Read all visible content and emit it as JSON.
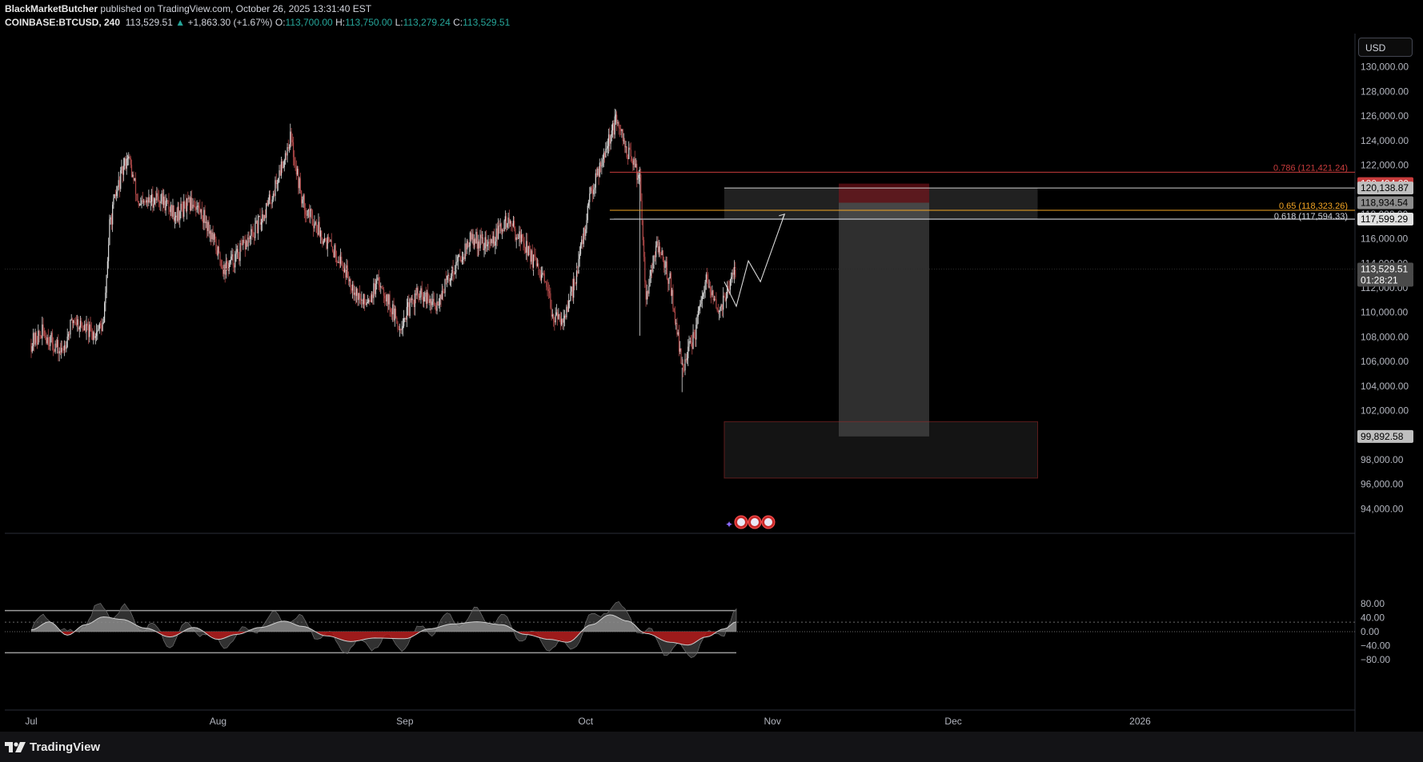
{
  "header": {
    "author": "BlackMarketButcher",
    "published_text": "published on TradingView.com, October 26, 2025 13:31:40 EST",
    "symbol": "COINBASE:BTCUSD, 240",
    "last": "113,529.51",
    "change_arrow": "▲",
    "change": "+1,863.30 (+1.67%)",
    "o_label": "O:",
    "o_value": "113,700.00",
    "h_label": "H:",
    "h_value": "113,750.00",
    "l_label": "L:",
    "l_value": "113,279.24",
    "c_label": "C:",
    "c_value": "113,529.51"
  },
  "currency_button": "USD",
  "footer": {
    "logo_text": "TradingView"
  },
  "colors": {
    "background": "#000000",
    "up": "#26a69a",
    "down_candle": "#b04848",
    "up_candle": "#d9d9d9",
    "fib_red": "#c83c3c",
    "fib_orange": "#f5a623",
    "oscillator_pos": "#8a8a8a",
    "oscillator_neg": "#b01818"
  },
  "chart_data": [
    {
      "type": "candlestick",
      "title": "COINBASE:BTCUSD, 240",
      "y_axis_ticks": [
        "130,000.00",
        "128,000.00",
        "126,000.00",
        "124,000.00",
        "122,000.00",
        "120,000.00",
        "118,000.00",
        "116,000.00",
        "114,000.00",
        "112,000.00",
        "110,000.00",
        "108,000.00",
        "106,000.00",
        "104,000.00",
        "102,000.00",
        "100,000.00",
        "98,000.00",
        "96,000.00",
        "94,000.00"
      ],
      "x_axis_ticks": [
        "Jul",
        "Aug",
        "Sep",
        "Oct",
        "Nov",
        "Dec",
        "2026"
      ],
      "ylim": [
        92500,
        130800
      ],
      "approx_close_path": [
        {
          "x": "Jul 1",
          "y": 107500
        },
        {
          "x": "Jul 3",
          "y": 108400
        },
        {
          "x": "Jul 6",
          "y": 106700
        },
        {
          "x": "Jul 8",
          "y": 109500
        },
        {
          "x": "Jul 11",
          "y": 108200
        },
        {
          "x": "Jul 13",
          "y": 109000
        },
        {
          "x": "Jul 14",
          "y": 117000
        },
        {
          "x": "Jul 15",
          "y": 119500
        },
        {
          "x": "Jul 17",
          "y": 122900
        },
        {
          "x": "Jul 19",
          "y": 118500
        },
        {
          "x": "Jul 22",
          "y": 119500
        },
        {
          "x": "Jul 25",
          "y": 118000
        },
        {
          "x": "Jul 28",
          "y": 119000
        },
        {
          "x": "Jul 30",
          "y": 117500
        },
        {
          "x": "Aug 2",
          "y": 113500
        },
        {
          "x": "Aug 4",
          "y": 114500
        },
        {
          "x": "Aug 7",
          "y": 116500
        },
        {
          "x": "Aug 10",
          "y": 119500
        },
        {
          "x": "Aug 13",
          "y": 124300
        },
        {
          "x": "Aug 15",
          "y": 119000
        },
        {
          "x": "Aug 18",
          "y": 116500
        },
        {
          "x": "Aug 21",
          "y": 114500
        },
        {
          "x": "Aug 25",
          "y": 110700
        },
        {
          "x": "Aug 28",
          "y": 112500
        },
        {
          "x": "Aug 31",
          "y": 108800
        },
        {
          "x": "Sep 3",
          "y": 111500
        },
        {
          "x": "Sep 6",
          "y": 110500
        },
        {
          "x": "Sep 9",
          "y": 113500
        },
        {
          "x": "Sep 12",
          "y": 116000
        },
        {
          "x": "Sep 15",
          "y": 115500
        },
        {
          "x": "Sep 18",
          "y": 117500
        },
        {
          "x": "Sep 21",
          "y": 115500
        },
        {
          "x": "Sep 24",
          "y": 112500
        },
        {
          "x": "Sep 26",
          "y": 109300
        },
        {
          "x": "Sep 28",
          "y": 110000
        },
        {
          "x": "Sep 30",
          "y": 114500
        },
        {
          "x": "Oct 2",
          "y": 120000
        },
        {
          "x": "Oct 4",
          "y": 123000
        },
        {
          "x": "Oct 6",
          "y": 125500
        },
        {
          "x": "Oct 8",
          "y": 123000
        },
        {
          "x": "Oct 10",
          "y": 121000
        },
        {
          "x": "Oct 11",
          "y": 111500
        },
        {
          "x": "Oct 13",
          "y": 115500
        },
        {
          "x": "Oct 15",
          "y": 112500
        },
        {
          "x": "Oct 17",
          "y": 105500
        },
        {
          "x": "Oct 19",
          "y": 108000
        },
        {
          "x": "Oct 21",
          "y": 112500
        },
        {
          "x": "Oct 23",
          "y": 110000
        },
        {
          "x": "Oct 26",
          "y": 113529.51
        }
      ],
      "projection_path": [
        {
          "x": "Oct 24",
          "y": 112500
        },
        {
          "x": "Oct 26",
          "y": 110500
        },
        {
          "x": "Oct 28",
          "y": 114200
        },
        {
          "x": "Oct 30",
          "y": 112500
        },
        {
          "x": "Nov 3",
          "y": 118000
        }
      ],
      "fib_levels": [
        {
          "label": "0.786 (121,421.24)",
          "value": 121421.24,
          "color": "#c83c3c"
        },
        {
          "label": "0.65 (118,323.26)",
          "value": 118323.26,
          "color": "#f5a623"
        },
        {
          "label": "0.618 (117,594.33)",
          "value": 117594.33,
          "color": "#d1d4dc"
        }
      ],
      "price_tags": [
        {
          "text": "120,494.29",
          "value": 120494.29,
          "bg": "#c83c3c",
          "fg": "#ffffff"
        },
        {
          "text": "120,138.87",
          "value": 120138.87,
          "bg": "#bfbfbf",
          "fg": "#000000"
        },
        {
          "text": "118,934.54",
          "value": 118934.54,
          "bg": "#8c8c8c",
          "fg": "#000000"
        },
        {
          "text": "117,599.29",
          "value": 117599.29,
          "bg": "#e0e0e0",
          "fg": "#000000"
        },
        {
          "text": "113,529.51",
          "value": 113529.51,
          "bg": "#4a4a4a",
          "fg": "#ffffff"
        },
        {
          "text": "01:28:21",
          "value": 112700,
          "bg": "#4a4a4a",
          "fg": "#ffffff"
        },
        {
          "text": "99,892.58",
          "value": 99892.58,
          "bg": "#bfbfbf",
          "fg": "#000000"
        }
      ],
      "zones": [
        {
          "name": "resistance-zone",
          "from": "Oct 24",
          "to": "Dec 15",
          "y_high": 120138.87,
          "y_low": 117599.29
        },
        {
          "name": "stop-zone",
          "from": "Nov 12",
          "to": "Nov 27",
          "y_high": 120494.29,
          "y_low": 118934.54
        },
        {
          "name": "target-zone",
          "from": "Nov 12",
          "to": "Nov 27",
          "y_high": 118934.54,
          "y_low": 99892.58
        },
        {
          "name": "demand-zone",
          "from": "Oct 24",
          "to": "Dec 15",
          "y_high": 101100,
          "y_low": 96500
        }
      ]
    },
    {
      "type": "area",
      "title": "oscillator",
      "y_axis_ticks": [
        "80.00",
        "40.00",
        "0.00",
        "−40.00",
        "−80.00"
      ],
      "ylim": [
        -88,
        98
      ],
      "levels": [
        60,
        27,
        0,
        -60
      ],
      "approx_values": [
        {
          "x": "Jul 1",
          "y": 5
        },
        {
          "x": "Jul 4",
          "y": 28
        },
        {
          "x": "Jul 7",
          "y": -10
        },
        {
          "x": "Jul 10",
          "y": 20
        },
        {
          "x": "Jul 13",
          "y": 42
        },
        {
          "x": "Jul 16",
          "y": 35
        },
        {
          "x": "Jul 20",
          "y": 10
        },
        {
          "x": "Jul 24",
          "y": -15
        },
        {
          "x": "Jul 28",
          "y": 12
        },
        {
          "x": "Aug 1",
          "y": -22
        },
        {
          "x": "Aug 4",
          "y": -8
        },
        {
          "x": "Aug 8",
          "y": 12
        },
        {
          "x": "Aug 12",
          "y": 30
        },
        {
          "x": "Aug 15",
          "y": 15
        },
        {
          "x": "Aug 19",
          "y": -12
        },
        {
          "x": "Aug 23",
          "y": -28
        },
        {
          "x": "Aug 27",
          "y": -18
        },
        {
          "x": "Sep 1",
          "y": -20
        },
        {
          "x": "Sep 5",
          "y": 8
        },
        {
          "x": "Sep 9",
          "y": 22
        },
        {
          "x": "Sep 13",
          "y": 28
        },
        {
          "x": "Sep 17",
          "y": 20
        },
        {
          "x": "Sep 21",
          "y": -8
        },
        {
          "x": "Sep 25",
          "y": -22
        },
        {
          "x": "Sep 28",
          "y": -30
        },
        {
          "x": "Oct 2",
          "y": 20
        },
        {
          "x": "Oct 5",
          "y": 48
        },
        {
          "x": "Oct 8",
          "y": 30
        },
        {
          "x": "Oct 11",
          "y": -5
        },
        {
          "x": "Oct 15",
          "y": -30
        },
        {
          "x": "Oct 18",
          "y": -38
        },
        {
          "x": "Oct 21",
          "y": -15
        },
        {
          "x": "Oct 24",
          "y": 8
        },
        {
          "x": "Oct 26",
          "y": 28
        }
      ]
    }
  ]
}
